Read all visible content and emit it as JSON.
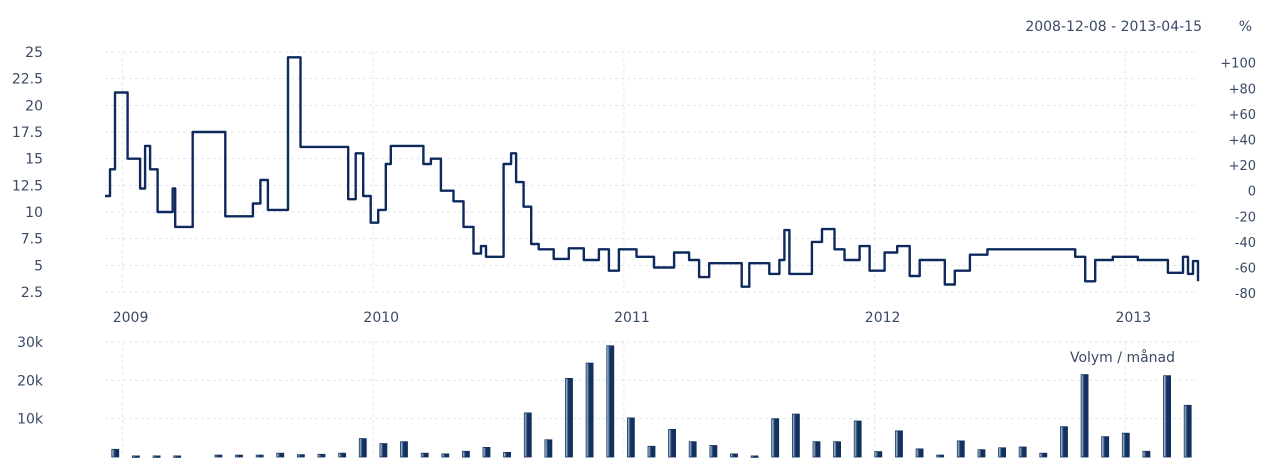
{
  "header": {
    "date_range": "2008-12-08 - 2013-04-15",
    "percent_label": "%"
  },
  "colors": {
    "price_line": "#0e2a5c",
    "volume_bar_dark": "#12315f",
    "volume_bar_light": "#cfe0f4",
    "grid": "#e2e6ee",
    "text": "#3a4a66"
  },
  "chart_data": [
    {
      "type": "line",
      "name": "price",
      "x_start": 2008.93,
      "x_end": 2013.29,
      "x_tick_labels": [
        "2009",
        "2010",
        "2011",
        "2012",
        "2013"
      ],
      "x_ticks": [
        2009,
        2010,
        2011,
        2012,
        2013
      ],
      "ylim": [
        2.5,
        25
      ],
      "y_tick_labels": [
        "2.5",
        "5",
        "7.5",
        "10",
        "12.5",
        "15",
        "17.5",
        "20",
        "22.5",
        "25"
      ],
      "y_ticks": [
        2.5,
        5,
        7.5,
        10,
        12.5,
        15,
        17.5,
        20,
        22.5,
        25
      ],
      "y2_tick_labels": [
        "-80",
        "-60",
        "-40",
        "-20",
        "0",
        "+20",
        "+40",
        "+60",
        "+80",
        "+100"
      ],
      "y2_ticks": [
        -80,
        -60,
        -40,
        -20,
        0,
        20,
        40,
        60,
        80,
        100
      ],
      "y2_reference_price": 12,
      "points": [
        [
          2008.93,
          11.5
        ],
        [
          2008.95,
          14.0
        ],
        [
          2008.97,
          21.2
        ],
        [
          2009.0,
          21.2
        ],
        [
          2009.02,
          15.0
        ],
        [
          2009.05,
          15.0
        ],
        [
          2009.07,
          12.2
        ],
        [
          2009.09,
          16.2
        ],
        [
          2009.11,
          14.0
        ],
        [
          2009.14,
          10.0
        ],
        [
          2009.18,
          10.0
        ],
        [
          2009.2,
          12.2
        ],
        [
          2009.21,
          8.6
        ],
        [
          2009.26,
          8.6
        ],
        [
          2009.28,
          17.5
        ],
        [
          2009.39,
          17.5
        ],
        [
          2009.41,
          9.6
        ],
        [
          2009.5,
          9.6
        ],
        [
          2009.52,
          10.8
        ],
        [
          2009.55,
          13.0
        ],
        [
          2009.58,
          10.2
        ],
        [
          2009.64,
          10.2
        ],
        [
          2009.66,
          24.5
        ],
        [
          2009.7,
          24.5
        ],
        [
          2009.71,
          16.1
        ],
        [
          2009.88,
          16.1
        ],
        [
          2009.9,
          11.2
        ],
        [
          2009.93,
          15.5
        ],
        [
          2009.96,
          11.5
        ],
        [
          2009.99,
          9.0
        ],
        [
          2010.02,
          10.2
        ],
        [
          2010.05,
          14.5
        ],
        [
          2010.07,
          16.2
        ],
        [
          2010.17,
          16.2
        ],
        [
          2010.2,
          14.5
        ],
        [
          2010.23,
          15.0
        ],
        [
          2010.27,
          12.0
        ],
        [
          2010.32,
          11.0
        ],
        [
          2010.36,
          8.6
        ],
        [
          2010.4,
          6.1
        ],
        [
          2010.43,
          6.8
        ],
        [
          2010.45,
          5.8
        ],
        [
          2010.5,
          5.8
        ],
        [
          2010.52,
          14.5
        ],
        [
          2010.55,
          15.5
        ],
        [
          2010.57,
          12.8
        ],
        [
          2010.6,
          10.5
        ],
        [
          2010.63,
          7.0
        ],
        [
          2010.66,
          6.5
        ],
        [
          2010.72,
          5.6
        ],
        [
          2010.78,
          6.6
        ],
        [
          2010.84,
          5.5
        ],
        [
          2010.9,
          6.5
        ],
        [
          2010.94,
          4.5
        ],
        [
          2010.98,
          6.5
        ],
        [
          2011.05,
          5.8
        ],
        [
          2011.12,
          4.8
        ],
        [
          2011.2,
          6.2
        ],
        [
          2011.26,
          5.5
        ],
        [
          2011.3,
          3.9
        ],
        [
          2011.34,
          5.2
        ],
        [
          2011.45,
          5.2
        ],
        [
          2011.47,
          3.0
        ],
        [
          2011.5,
          5.2
        ],
        [
          2011.58,
          4.2
        ],
        [
          2011.62,
          5.5
        ],
        [
          2011.64,
          8.3
        ],
        [
          2011.66,
          4.2
        ],
        [
          2011.72,
          4.2
        ],
        [
          2011.75,
          7.2
        ],
        [
          2011.79,
          8.4
        ],
        [
          2011.84,
          6.5
        ],
        [
          2011.88,
          5.5
        ],
        [
          2011.94,
          6.8
        ],
        [
          2011.98,
          4.5
        ],
        [
          2012.04,
          6.2
        ],
        [
          2012.09,
          6.8
        ],
        [
          2012.14,
          4.0
        ],
        [
          2012.18,
          5.5
        ],
        [
          2012.24,
          5.5
        ],
        [
          2012.28,
          3.2
        ],
        [
          2012.32,
          4.5
        ],
        [
          2012.38,
          6.0
        ],
        [
          2012.45,
          6.5
        ],
        [
          2012.55,
          6.5
        ],
        [
          2012.65,
          6.5
        ],
        [
          2012.75,
          6.5
        ],
        [
          2012.8,
          5.8
        ],
        [
          2012.84,
          3.5
        ],
        [
          2012.88,
          5.5
        ],
        [
          2012.95,
          5.8
        ],
        [
          2013.05,
          5.5
        ],
        [
          2013.12,
          5.5
        ],
        [
          2013.17,
          4.3
        ],
        [
          2013.21,
          4.3
        ],
        [
          2013.23,
          5.8
        ],
        [
          2013.25,
          4.2
        ],
        [
          2013.27,
          5.4
        ],
        [
          2013.29,
          3.5
        ]
      ]
    },
    {
      "type": "bar",
      "name": "volume",
      "label": "Volym / månad",
      "ylim": [
        0,
        30000
      ],
      "y_tick_labels": [
        "10k",
        "20k",
        "30k"
      ],
      "y_ticks": [
        10000,
        20000,
        30000
      ],
      "categories": [
        "2008-12",
        "2009-01",
        "2009-02",
        "2009-03",
        "2009-04",
        "2009-05",
        "2009-06",
        "2009-07",
        "2009-08",
        "2009-09",
        "2009-10",
        "2009-11",
        "2009-12",
        "2010-01",
        "2010-02",
        "2010-03",
        "2010-04",
        "2010-05",
        "2010-06",
        "2010-07",
        "2010-08",
        "2010-09",
        "2010-10",
        "2010-11",
        "2010-12",
        "2011-01",
        "2011-02",
        "2011-03",
        "2011-04",
        "2011-05",
        "2011-06",
        "2011-07",
        "2011-08",
        "2011-09",
        "2011-10",
        "2011-11",
        "2011-12",
        "2012-01",
        "2012-02",
        "2012-03",
        "2012-04",
        "2012-05",
        "2012-06",
        "2012-07",
        "2012-08",
        "2012-09",
        "2012-10",
        "2012-11",
        "2012-12",
        "2013-01",
        "2013-02",
        "2013-03",
        "2013-04"
      ],
      "values": [
        2000,
        300,
        300,
        300,
        0,
        500,
        500,
        500,
        1000,
        600,
        700,
        1000,
        4800,
        3500,
        4000,
        1000,
        800,
        1500,
        2500,
        1200,
        11500,
        4500,
        20500,
        24500,
        29000,
        10200,
        2800,
        7200,
        4000,
        3000,
        800,
        300,
        10000,
        11200,
        4000,
        4000,
        9400,
        1400,
        6800,
        2100,
        500,
        4200,
        1900,
        2400,
        2600,
        1000,
        7900,
        21500,
        5300,
        6200,
        1500,
        21200,
        13500
      ]
    }
  ]
}
